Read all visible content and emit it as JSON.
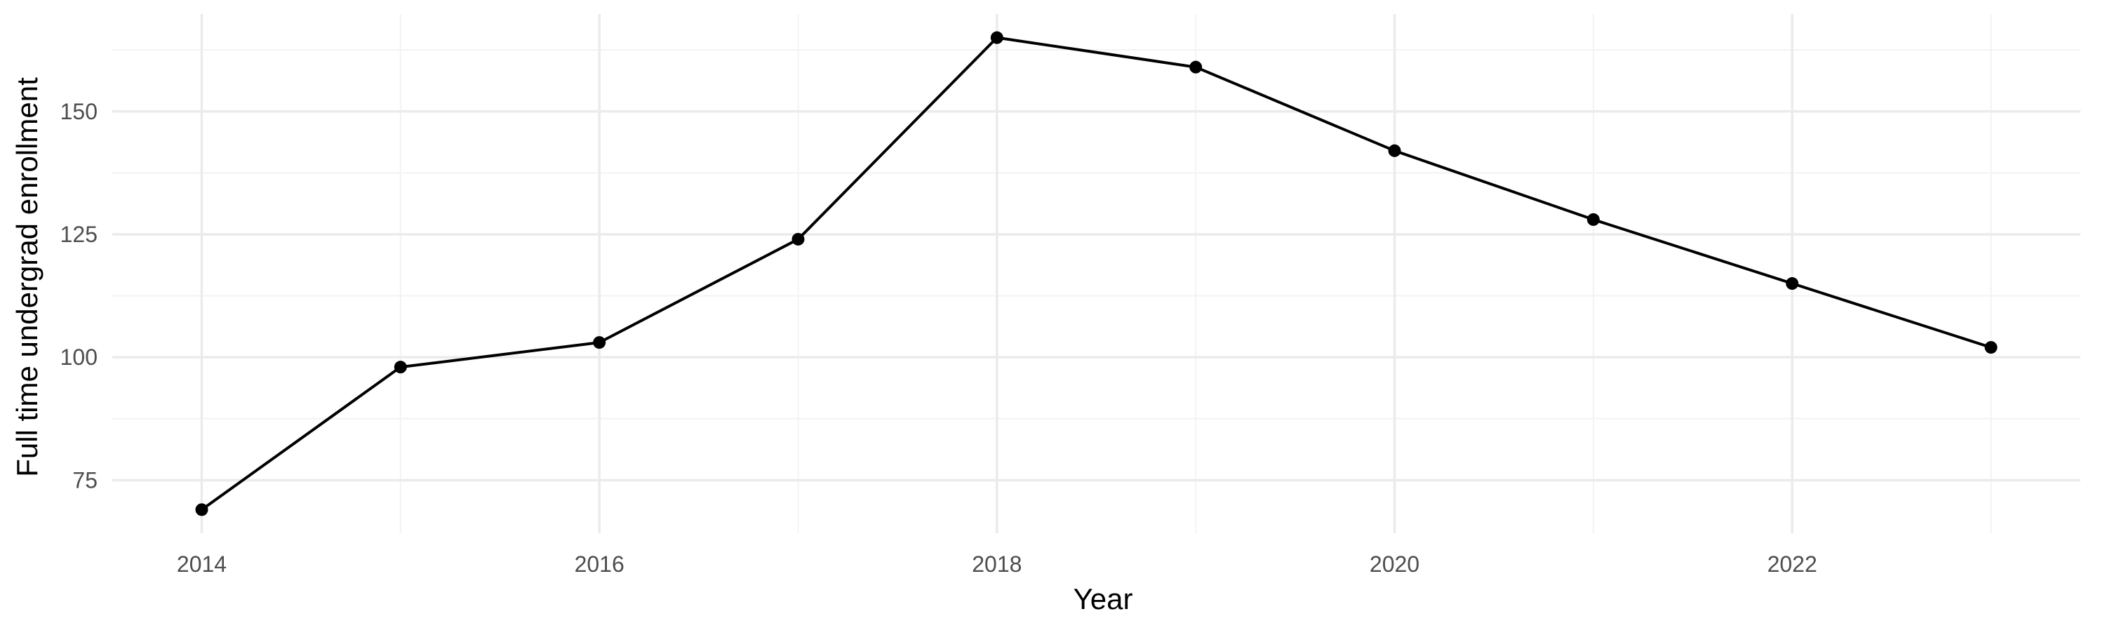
{
  "chart_data": {
    "type": "line",
    "title": "",
    "xlabel": "Year",
    "ylabel": "Full time undergrad enrollment",
    "x": [
      2014,
      2015,
      2016,
      2017,
      2018,
      2019,
      2020,
      2021,
      2022,
      2023
    ],
    "series": [
      {
        "values": [
          69,
          98,
          103,
          124,
          165,
          159,
          142,
          128,
          115,
          102
        ]
      }
    ],
    "xlim": [
      2013.55,
      2023.45
    ],
    "ylim": [
      64.2,
      169.8
    ],
    "x_ticks": [
      2014,
      2016,
      2018,
      2020,
      2022
    ],
    "y_ticks": [
      75,
      100,
      125,
      150
    ],
    "grid": true,
    "legend": "none",
    "colors": {
      "line": "#000000",
      "point": "#000000",
      "grid_major": "#ebebeb",
      "grid_minor": "#f3f3f3",
      "tick_text": "#4d4d4d"
    }
  }
}
